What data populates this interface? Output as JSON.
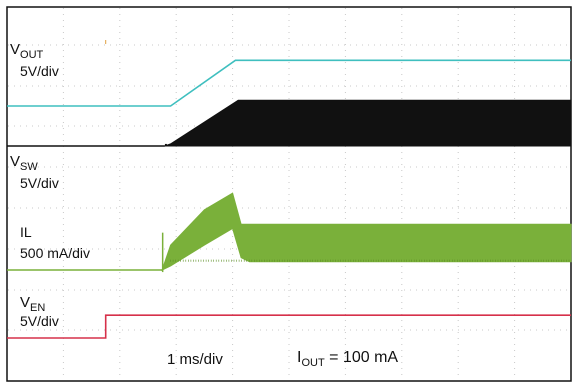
{
  "chart_data": {
    "type": "line",
    "title": "",
    "time_axis": {
      "scale_label": "1 ms/div",
      "unit": "ms",
      "divisions": 10,
      "xlim": [
        0,
        10
      ]
    },
    "grid": "dotted",
    "annotation": {
      "prefix": "I",
      "subscript": "OUT",
      "text": " = 100 mA"
    },
    "colors": {
      "frame": "#111111",
      "grid": "#c8c8c8",
      "vout": "#3fbfbf",
      "vsw": "#111111",
      "il": "#7ab03a",
      "ven": "#d6304a"
    },
    "series": [
      {
        "id": "vout",
        "name_main": "V",
        "name_sub": "OUT",
        "scale": "5V/div",
        "color": "#3fbfbf",
        "x": [
          0,
          2.9,
          4.05,
          10
        ],
        "y_div": [
          0,
          0,
          1.1,
          1.1
        ]
      },
      {
        "id": "vsw",
        "name_main": "V",
        "name_sub": "SW",
        "scale": "5V/div",
        "color": "#111111",
        "x": [
          0,
          2.8,
          2.9,
          4.1,
          10
        ],
        "y_low_div": [
          0,
          0,
          0,
          0,
          0
        ],
        "y_high_div": [
          0,
          0,
          0.05,
          1.1,
          1.1
        ],
        "switching_start": 2.8
      },
      {
        "id": "il",
        "name_main": "IL",
        "name_sub": "",
        "scale": "500 mA/div",
        "color": "#7ab03a",
        "x": [
          0,
          2.75,
          2.9,
          3.5,
          4.0,
          4.15,
          4.3,
          10
        ],
        "y_low_div": [
          0,
          0,
          0.1,
          0.6,
          1.0,
          0.3,
          0.2,
          0.2
        ],
        "y_high_div": [
          0,
          0,
          0.6,
          1.45,
          1.85,
          1.1,
          1.1,
          1.1
        ]
      },
      {
        "id": "ven",
        "name_main": "V",
        "name_sub": "EN",
        "scale": "5V/div",
        "color": "#d6304a",
        "x": [
          0,
          1.75,
          1.75,
          10
        ],
        "y_div": [
          0,
          0,
          0.55,
          0.55
        ]
      }
    ]
  }
}
